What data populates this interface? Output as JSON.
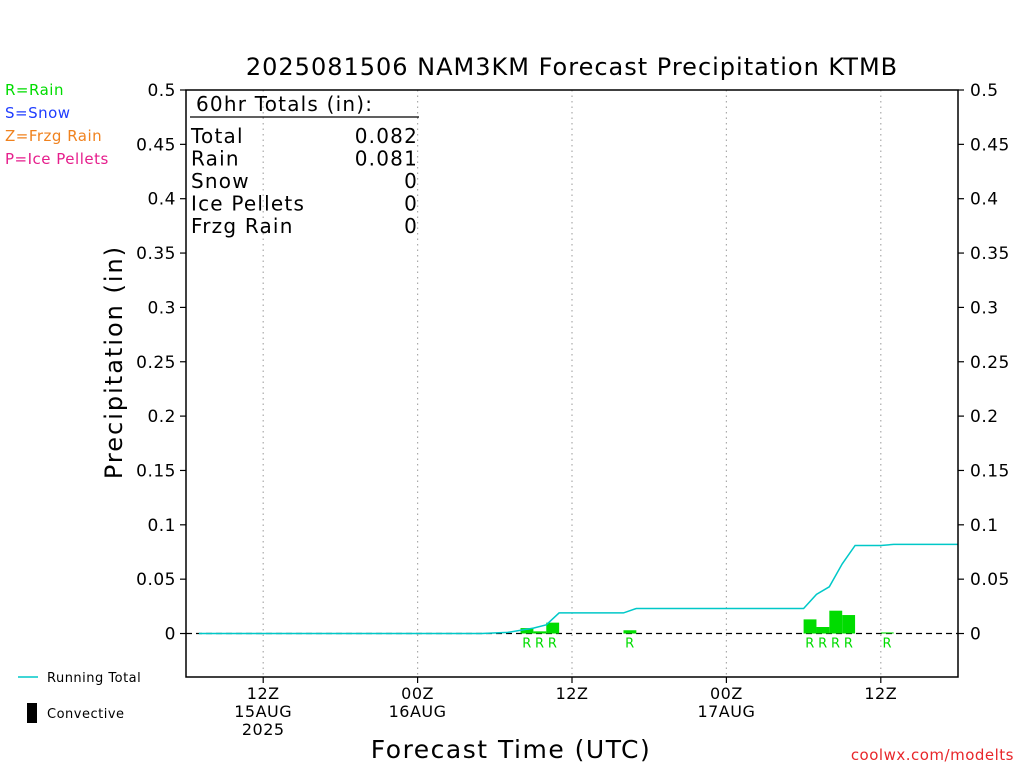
{
  "page": {
    "source": "coolwx.com/modelts"
  },
  "type_legend": [
    {
      "text": "R=Rain",
      "color": "#00dc00"
    },
    {
      "text": "S=Snow",
      "color": "#1e3cff"
    },
    {
      "text": "Z=Frzg Rain",
      "color": "#f0821e"
    },
    {
      "text": "P=Ice Pellets",
      "color": "#e61e8c"
    }
  ],
  "series_legend": {
    "running_total": "Running Total",
    "convective": "Convective"
  },
  "totals_box": {
    "heading": "60hr Totals (in):",
    "rows": [
      {
        "label": "Total",
        "value": "0.082"
      },
      {
        "label": "Rain",
        "value": "0.081"
      },
      {
        "label": "Snow",
        "value": "0"
      },
      {
        "label": "Ice Pellets",
        "value": "0"
      },
      {
        "label": "Frzg Rain",
        "value": "0"
      }
    ]
  },
  "colors": {
    "rain_bar": "#00dc00",
    "running_total": "#00c8c8",
    "axis": "#000000",
    "grid": "#aaaaaa",
    "footer": "#e8262a"
  },
  "chart_data": {
    "type": "bar",
    "title": "2025081506 NAM3KM Forecast Precipitation KTMB",
    "xlabel": "Forecast Time (UTC)",
    "ylabel": "Precipitation (in)",
    "ylim": [
      -0.04,
      0.5
    ],
    "yticks": [
      "0.5",
      "0.45",
      "0.4",
      "0.35",
      "0.3",
      "0.25",
      "0.2",
      "0.15",
      "0.1",
      "0.05",
      "0"
    ],
    "ytick_values": [
      0.5,
      0.45,
      0.4,
      0.35,
      0.3,
      0.25,
      0.2,
      0.15,
      0.1,
      0.05,
      0
    ],
    "xlim": [
      "2025-08-15T06:00Z",
      "2025-08-17T18:00Z"
    ],
    "xticks": [
      {
        "time": "2025-08-15T12:00Z",
        "lines": [
          "12Z",
          "15AUG",
          "2025"
        ]
      },
      {
        "time": "2025-08-16T00:00Z",
        "lines": [
          "00Z",
          "16AUG"
        ]
      },
      {
        "time": "2025-08-16T12:00Z",
        "lines": [
          "12Z"
        ]
      },
      {
        "time": "2025-08-17T00:00Z",
        "lines": [
          "00Z",
          "17AUG"
        ]
      },
      {
        "time": "2025-08-17T12:00Z",
        "lines": [
          "12Z"
        ]
      }
    ],
    "grid": true,
    "hourly_precip": [
      {
        "time": "2025-08-16T09:00Z",
        "value": 0.005,
        "type": "R"
      },
      {
        "time": "2025-08-16T10:00Z",
        "value": 0.002,
        "type": "R"
      },
      {
        "time": "2025-08-16T11:00Z",
        "value": 0.01,
        "type": "R"
      },
      {
        "time": "2025-08-16T17:00Z",
        "value": 0.003,
        "type": "R"
      },
      {
        "time": "2025-08-17T07:00Z",
        "value": 0.013,
        "type": "R"
      },
      {
        "time": "2025-08-17T08:00Z",
        "value": 0.006,
        "type": "R"
      },
      {
        "time": "2025-08-17T09:00Z",
        "value": 0.021,
        "type": "R"
      },
      {
        "time": "2025-08-17T10:00Z",
        "value": 0.017,
        "type": "R"
      },
      {
        "time": "2025-08-17T13:00Z",
        "value": 0.001,
        "type": "R"
      }
    ],
    "running_total": [
      {
        "time": "2025-08-15T07:00Z",
        "value": 0
      },
      {
        "time": "2025-08-16T05:00Z",
        "value": 0
      },
      {
        "time": "2025-08-16T07:00Z",
        "value": 0.001
      },
      {
        "time": "2025-08-16T09:00Z",
        "value": 0.005
      },
      {
        "time": "2025-08-16T10:00Z",
        "value": 0.008
      },
      {
        "time": "2025-08-16T11:00Z",
        "value": 0.019
      },
      {
        "time": "2025-08-16T16:00Z",
        "value": 0.019
      },
      {
        "time": "2025-08-16T17:00Z",
        "value": 0.023
      },
      {
        "time": "2025-08-17T06:00Z",
        "value": 0.023
      },
      {
        "time": "2025-08-17T07:00Z",
        "value": 0.036
      },
      {
        "time": "2025-08-17T08:00Z",
        "value": 0.043
      },
      {
        "time": "2025-08-17T09:00Z",
        "value": 0.064
      },
      {
        "time": "2025-08-17T10:00Z",
        "value": 0.081
      },
      {
        "time": "2025-08-17T12:00Z",
        "value": 0.081
      },
      {
        "time": "2025-08-17T13:00Z",
        "value": 0.082
      },
      {
        "time": "2025-08-17T18:00Z",
        "value": 0.082
      }
    ]
  }
}
